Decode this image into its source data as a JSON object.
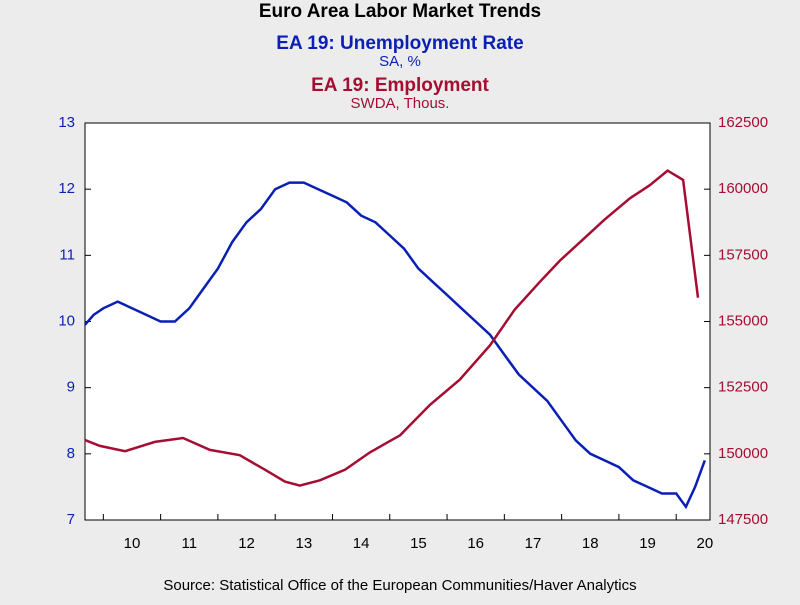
{
  "chart_data": {
    "type": "line",
    "title": "Euro Area Labor Market Trends",
    "subtitles": [
      {
        "text": "EA 19: Unemployment Rate",
        "color": "#0a1fb4"
      },
      {
        "text": "SA, %",
        "color": "#0a1fb4"
      },
      {
        "text": "EA 19: Employment",
        "color": "#a50d32"
      },
      {
        "text": "SWDA, Thous.",
        "color": "#a50d32"
      }
    ],
    "source": "Source:  Statistical Office of the European Communities/Haver Analytics",
    "xlim": [
      2009.68,
      2020.59
    ],
    "xticks": [
      {
        "value": 2010,
        "label": "10"
      },
      {
        "value": 2011,
        "label": "11"
      },
      {
        "value": 2012,
        "label": "12"
      },
      {
        "value": 2013,
        "label": "13"
      },
      {
        "value": 2014,
        "label": "14"
      },
      {
        "value": 2015,
        "label": "15"
      },
      {
        "value": 2016,
        "label": "16"
      },
      {
        "value": 2017,
        "label": "17"
      },
      {
        "value": 2018,
        "label": "18"
      },
      {
        "value": 2019,
        "label": "19"
      },
      {
        "value": 2020,
        "label": "20"
      }
    ],
    "ylim": [
      7,
      13
    ],
    "yticks": [
      7,
      8,
      9,
      10,
      11,
      12,
      13
    ],
    "y2lim": [
      147500,
      162500
    ],
    "y2ticks": [
      147500,
      150000,
      152500,
      155000,
      157500,
      160000,
      162500
    ],
    "series": [
      {
        "name": "EA 19: Unemployment Rate",
        "color": "#0a1fb4",
        "axis": "y",
        "x": [
          2009.68,
          2009.83,
          2010.0,
          2010.25,
          2010.5,
          2010.75,
          2011.0,
          2011.25,
          2011.5,
          2011.75,
          2012.0,
          2012.25,
          2012.5,
          2012.75,
          2013.0,
          2013.25,
          2013.5,
          2013.75,
          2014.0,
          2014.25,
          2014.5,
          2014.75,
          2015.0,
          2015.25,
          2015.5,
          2015.75,
          2016.0,
          2016.25,
          2016.5,
          2016.75,
          2017.0,
          2017.25,
          2017.5,
          2017.75,
          2018.0,
          2018.25,
          2018.5,
          2018.75,
          2019.0,
          2019.25,
          2019.5,
          2019.75,
          2020.0,
          2020.17,
          2020.33,
          2020.5
        ],
        "values": [
          9.95,
          10.1,
          10.2,
          10.3,
          10.2,
          10.1,
          10.0,
          10.0,
          10.2,
          10.5,
          10.8,
          11.2,
          11.5,
          11.7,
          12.0,
          12.1,
          12.1,
          12.0,
          11.9,
          11.8,
          11.6,
          11.5,
          11.3,
          11.1,
          10.8,
          10.6,
          10.4,
          10.2,
          10.0,
          9.8,
          9.5,
          9.2,
          9.0,
          8.8,
          8.5,
          8.2,
          8.0,
          7.9,
          7.8,
          7.6,
          7.5,
          7.4,
          7.4,
          7.2,
          7.5,
          7.9
        ]
      },
      {
        "name": "EA 19: Employment",
        "color": "#a50d32",
        "axis": "y2",
        "x": [
          2009.68,
          2009.94,
          2010.38,
          2010.9,
          2011.39,
          2011.86,
          2012.38,
          2012.82,
          2013.17,
          2013.43,
          2013.78,
          2014.22,
          2014.65,
          2015.18,
          2015.7,
          2016.22,
          2016.75,
          2017.18,
          2017.62,
          2017.97,
          2018.4,
          2018.75,
          2019.19,
          2019.54,
          2019.85,
          2020.12,
          2020.38
        ],
        "values": [
          150520,
          150300,
          150100,
          150450,
          150600,
          150150,
          149950,
          149400,
          148950,
          148800,
          149000,
          149400,
          150050,
          150700,
          151850,
          152800,
          154100,
          155450,
          156500,
          157300,
          158150,
          158850,
          159650,
          160150,
          160700,
          160350,
          155900
        ]
      }
    ]
  }
}
